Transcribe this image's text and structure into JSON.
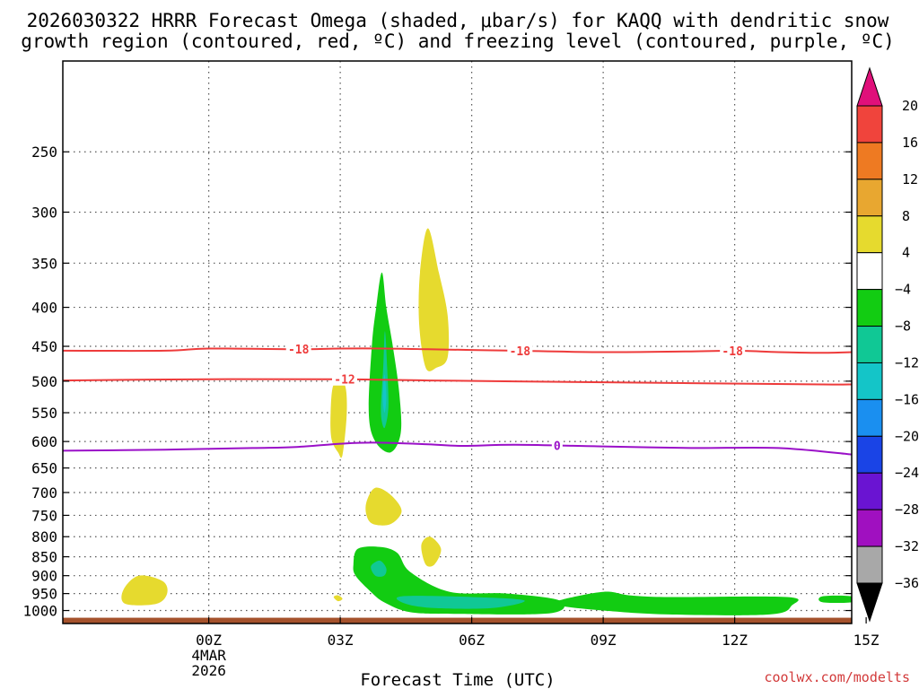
{
  "chart_data": {
    "type": "heatmap",
    "title": "2026030322 HRRR Forecast Omega (shaded, μbar/s) for KAQQ with dendritic snow",
    "subtitle": "growth region (contoured, red, ºC) and freezing level (contoured, purple, ºC)",
    "xlabel": "Forecast Time (UTC)",
    "ylabel": "",
    "credit": "coolwx.com/modelts",
    "x_unit": "forecast hour",
    "x_range": [
      -3.33,
      14.67
    ],
    "y_scale": "log-pressure",
    "y_range_hpa": [
      1040,
      190
    ],
    "x_ticks": [
      {
        "value": 0,
        "label": "00Z",
        "sub1": "4MAR",
        "sub2": "2026"
      },
      {
        "value": 3,
        "label": "03Z"
      },
      {
        "value": 6,
        "label": "06Z"
      },
      {
        "value": 9,
        "label": "09Z"
      },
      {
        "value": 12,
        "label": "12Z"
      },
      {
        "value": 15,
        "label": "15Z"
      }
    ],
    "y_ticks": [
      250,
      300,
      350,
      400,
      450,
      500,
      550,
      600,
      650,
      700,
      750,
      800,
      850,
      900,
      950,
      1000
    ],
    "grid": true,
    "colorbar": {
      "levels": [
        -36,
        -32,
        -28,
        -24,
        -20,
        -16,
        -12,
        -8,
        -4,
        4,
        8,
        12,
        16,
        20
      ],
      "bins": [
        {
          "range": [
            20,
            null
          ],
          "color": "#e0107a"
        },
        {
          "range": [
            16,
            20
          ],
          "color": "#f0443c"
        },
        {
          "range": [
            12,
            16
          ],
          "color": "#ee7a22"
        },
        {
          "range": [
            8,
            12
          ],
          "color": "#e8a730"
        },
        {
          "range": [
            4,
            8
          ],
          "color": "#e6da2e"
        },
        {
          "range": [
            -4,
            4
          ],
          "color": "#ffffff"
        },
        {
          "range": [
            -8,
            -4
          ],
          "color": "#12cc12"
        },
        {
          "range": [
            -12,
            -8
          ],
          "color": "#10c895"
        },
        {
          "range": [
            -16,
            -12
          ],
          "color": "#14c5c8"
        },
        {
          "range": [
            -20,
            -16
          ],
          "color": "#1a8ff0"
        },
        {
          "range": [
            -24,
            -20
          ],
          "color": "#1a44e6"
        },
        {
          "range": [
            -28,
            -24
          ],
          "color": "#6a14d2"
        },
        {
          "range": [
            -32,
            -28
          ],
          "color": "#a010c0"
        },
        {
          "range": [
            -36,
            -32
          ],
          "color": "#a8a8a8"
        },
        {
          "range": [
            null,
            -36
          ],
          "color": "#000000"
        }
      ]
    },
    "omega_regions": [
      {
        "name": "rising-omega-core",
        "color": "#12cc12",
        "points": [
          [
            3.65,
            550
          ],
          [
            3.72,
            450
          ],
          [
            3.82,
            400
          ],
          [
            3.95,
            360
          ],
          [
            4.05,
            400
          ],
          [
            4.2,
            450
          ],
          [
            4.35,
            520
          ],
          [
            4.38,
            585
          ],
          [
            4.15,
            620
          ],
          [
            3.8,
            600
          ]
        ]
      },
      {
        "name": "rising-omega-core-inner",
        "color": "#10c895",
        "points": [
          [
            3.93,
            540
          ],
          [
            3.98,
            480
          ],
          [
            4.02,
            430
          ],
          [
            4.07,
            480
          ],
          [
            4.1,
            540
          ],
          [
            4.02,
            575
          ],
          [
            3.95,
            565
          ]
        ]
      },
      {
        "name": "rising-omega-core-center",
        "color": "#14c5c8",
        "points": [
          [
            3.97,
            525
          ],
          [
            4.01,
            490
          ],
          [
            4.05,
            525
          ],
          [
            4.01,
            550
          ]
        ]
      },
      {
        "name": "sinking-omega-upper",
        "color": "#e6da2e",
        "points": [
          [
            4.8,
            420
          ],
          [
            4.82,
            360
          ],
          [
            5.0,
            315
          ],
          [
            5.25,
            360
          ],
          [
            5.45,
            410
          ],
          [
            5.45,
            465
          ],
          [
            5.2,
            480
          ],
          [
            4.95,
            480
          ]
        ]
      },
      {
        "name": "sinking-omega-mid",
        "color": "#e6da2e",
        "points": [
          [
            2.78,
            550
          ],
          [
            2.85,
            505
          ],
          [
            3.1,
            505
          ],
          [
            3.15,
            550
          ],
          [
            3.05,
            625
          ],
          [
            2.95,
            620
          ],
          [
            2.8,
            595
          ]
        ]
      },
      {
        "name": "sinking-omega-700",
        "color": "#e6da2e",
        "points": [
          [
            3.6,
            720
          ],
          [
            3.8,
            690
          ],
          [
            4.15,
            705
          ],
          [
            4.4,
            740
          ],
          [
            4.15,
            770
          ],
          [
            3.75,
            770
          ],
          [
            3.6,
            750
          ]
        ]
      },
      {
        "name": "sinking-omega-830",
        "color": "#e6da2e",
        "points": [
          [
            4.85,
            820
          ],
          [
            5.05,
            800
          ],
          [
            5.3,
            830
          ],
          [
            5.15,
            870
          ],
          [
            4.95,
            870
          ]
        ]
      },
      {
        "name": "sinking-omega-small",
        "color": "#e6da2e",
        "points": [
          [
            2.85,
            960
          ],
          [
            2.95,
            955
          ],
          [
            3.05,
            965
          ],
          [
            2.95,
            972
          ]
        ]
      },
      {
        "name": "sinking-omega-left",
        "color": "#e6da2e",
        "points": [
          [
            -1.95,
            940
          ],
          [
            -1.6,
            900
          ],
          [
            -1.05,
            915
          ],
          [
            -0.95,
            950
          ],
          [
            -1.2,
            980
          ],
          [
            -1.9,
            980
          ]
        ]
      },
      {
        "name": "rising-omega-low",
        "color": "#12cc12",
        "points": [
          [
            3.3,
            870
          ],
          [
            3.4,
            830
          ],
          [
            3.9,
            825
          ],
          [
            4.3,
            840
          ],
          [
            4.6,
            890
          ],
          [
            5.5,
            945
          ],
          [
            6.8,
            950
          ],
          [
            8.0,
            970
          ],
          [
            7.8,
            1008
          ],
          [
            5.6,
            1010
          ],
          [
            4.6,
            1005
          ],
          [
            4.0,
            975
          ],
          [
            3.7,
            945
          ],
          [
            3.35,
            900
          ]
        ]
      },
      {
        "name": "rising-omega-low-inner",
        "color": "#10c895",
        "points": [
          [
            3.7,
            875
          ],
          [
            3.9,
            860
          ],
          [
            4.05,
            880
          ],
          [
            4.0,
            900
          ],
          [
            3.8,
            900
          ]
        ]
      },
      {
        "name": "rising-omega-low-band",
        "color": "#10c895",
        "points": [
          [
            4.4,
            958
          ],
          [
            6.0,
            960
          ],
          [
            7.2,
            970
          ],
          [
            6.5,
            992
          ],
          [
            5.2,
            993
          ],
          [
            4.5,
            980
          ]
        ]
      },
      {
        "name": "rising-omega-morning",
        "color": "#12cc12",
        "points": [
          [
            8.0,
            970
          ],
          [
            9.0,
            945
          ],
          [
            9.6,
            955
          ],
          [
            10.5,
            960
          ],
          [
            13.2,
            960
          ],
          [
            13.3,
            985
          ],
          [
            12.8,
            1012
          ],
          [
            10.5,
            1012
          ],
          [
            9.0,
            1000
          ],
          [
            8.0,
            985
          ]
        ]
      },
      {
        "name": "rising-omega-right",
        "color": "#12cc12",
        "points": [
          [
            14.0,
            958
          ],
          [
            14.67,
            958
          ],
          [
            14.67,
            975
          ],
          [
            14.0,
            975
          ]
        ]
      }
    ],
    "contours": [
      {
        "name": "dendritic-minus18",
        "value": -18,
        "label": "-18",
        "color": "#ee3b3b",
        "label_x": [
          2.05,
          7.1,
          11.95
        ],
        "points": [
          [
            -3.33,
            456
          ],
          [
            -1,
            456
          ],
          [
            0,
            453
          ],
          [
            2,
            454
          ],
          [
            3,
            453
          ],
          [
            4,
            453
          ],
          [
            5,
            454
          ],
          [
            6,
            455
          ],
          [
            7,
            456
          ],
          [
            9,
            458
          ],
          [
            11,
            457
          ],
          [
            12,
            456
          ],
          [
            13,
            458
          ],
          [
            14,
            459
          ],
          [
            14.67,
            458
          ]
        ]
      },
      {
        "name": "dendritic-minus12",
        "value": -12,
        "label": "-12",
        "color": "#ee3b3b",
        "label_x": [
          3.1
        ],
        "points": [
          [
            -3.33,
            499
          ],
          [
            0,
            497
          ],
          [
            3,
            497
          ],
          [
            5,
            499
          ],
          [
            8,
            501
          ],
          [
            11,
            503
          ],
          [
            14,
            505
          ],
          [
            14.67,
            505
          ]
        ]
      },
      {
        "name": "freezing-level",
        "value": 0,
        "label": "0",
        "color": "#9a10c8",
        "label_x": [
          7.95
        ],
        "points": [
          [
            -3.33,
            617
          ],
          [
            -1,
            615
          ],
          [
            1,
            612
          ],
          [
            2,
            610
          ],
          [
            3,
            604
          ],
          [
            3.8,
            602
          ],
          [
            5,
            605
          ],
          [
            5.8,
            608
          ],
          [
            7,
            606
          ],
          [
            9,
            609
          ],
          [
            11,
            612
          ],
          [
            13,
            612
          ],
          [
            14.67,
            624
          ]
        ]
      }
    ],
    "ground_color": "#a5522c",
    "ground_top_hpa": 1022
  }
}
